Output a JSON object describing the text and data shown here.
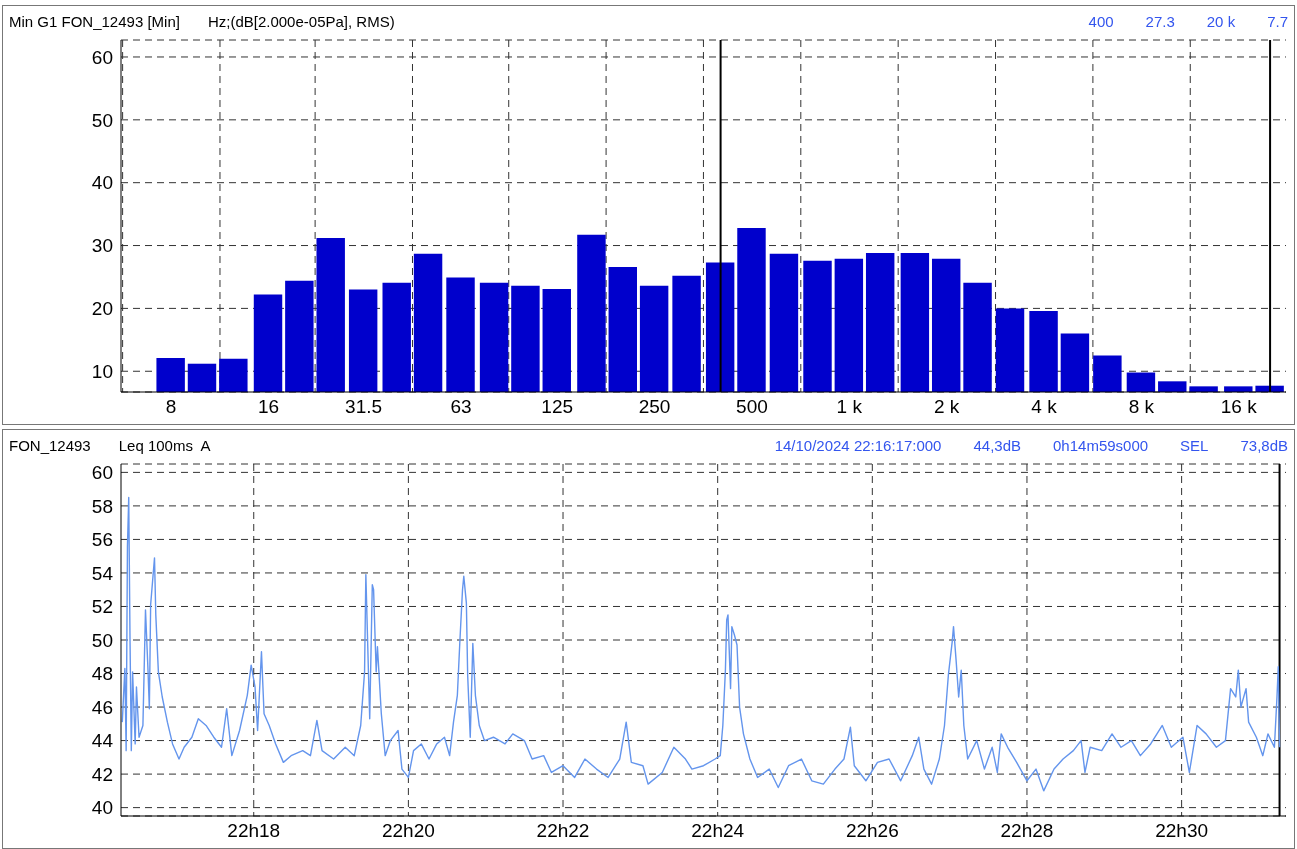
{
  "chart_data": [
    {
      "type": "bar",
      "title": "Min G1 FON_12493 [Min]",
      "subtitle": "Hz;(dB[2.000e-05Pa], RMS)",
      "annotations": [
        "400",
        "27.3",
        "20 k",
        "7.7"
      ],
      "x": [
        8,
        10,
        12.5,
        16,
        20,
        25,
        31.5,
        40,
        50,
        63,
        80,
        100,
        125,
        160,
        200,
        250,
        315,
        400,
        500,
        630,
        800,
        1000,
        1250,
        1600,
        2000,
        2500,
        3150,
        4000,
        5000,
        6300,
        8000,
        10000,
        12500,
        16000,
        20000
      ],
      "values": [
        12.1,
        11.2,
        12.0,
        22.2,
        24.4,
        31.2,
        23.0,
        24.1,
        28.7,
        24.9,
        24.1,
        23.6,
        23.1,
        31.7,
        26.6,
        23.6,
        25.2,
        27.3,
        32.8,
        28.7,
        27.6,
        27.9,
        28.8,
        28.8,
        27.9,
        24.1,
        20.0,
        19.6,
        16.0,
        12.5,
        9.8,
        8.4,
        7.6,
        7.6,
        7.7
      ],
      "color": "#0000cc",
      "log": "x",
      "xlim": [
        5.6,
        22400
      ],
      "xticks": [
        8,
        16,
        31.5,
        63,
        125,
        250,
        500,
        {
          "value": 1000,
          "label": "1 k"
        },
        {
          "value": 2000,
          "label": "2 k"
        },
        {
          "value": 4000,
          "label": "4 k"
        },
        {
          "value": 8000,
          "label": "8 k"
        },
        {
          "value": 16000,
          "label": "16 k"
        }
      ],
      "ylim": [
        6.7,
        62.7
      ],
      "yticks": [
        10,
        20,
        30,
        40,
        50,
        60
      ],
      "grid": true,
      "ref_lines": [
        {
          "axis": "x",
          "value": 400,
          "color": "#000000"
        },
        {
          "axis": "x",
          "value": 20000,
          "color": "#000000"
        }
      ]
    },
    {
      "type": "line",
      "title": "FON_12493",
      "subtitle": "Leq 100ms  A",
      "annotations": [
        "14/10/2024 22:16:17:000",
        "44,3dB",
        "0h14m59s000",
        "SEL",
        "73,8dB"
      ],
      "x": [
        "2024-10-14T22:16:18",
        "2024-10-14T22:16:20",
        "2024-10-14T22:16:21",
        "2024-10-14T22:16:22",
        "2024-10-14T22:16:23",
        "2024-10-14T22:16:24",
        "2024-10-14T22:16:25",
        "2024-10-14T22:16:26",
        "2024-10-14T22:16:28",
        "2024-10-14T22:16:29",
        "2024-10-14T22:16:31",
        "2024-10-14T22:16:34",
        "2024-10-14T22:16:36",
        "2024-10-14T22:16:38",
        "2024-10-14T22:16:39",
        "2024-10-14T22:16:40",
        "2024-10-14T22:16:43",
        "2024-10-14T22:16:44",
        "2024-10-14T22:16:46",
        "2024-10-14T22:16:49",
        "2024-10-14T22:16:53",
        "2024-10-14T22:16:57",
        "2024-10-14T22:17:02",
        "2024-10-14T22:17:06",
        "2024-10-14T22:17:12",
        "2024-10-14T22:17:17",
        "2024-10-14T22:17:23",
        "2024-10-14T22:17:29",
        "2024-10-14T22:17:35",
        "2024-10-14T22:17:39",
        "2024-10-14T22:17:43",
        "2024-10-14T22:17:49",
        "2024-10-14T22:17:55",
        "2024-10-14T22:17:58",
        "2024-10-14T22:18:01",
        "2024-10-14T22:18:03",
        "2024-10-14T22:18:06",
        "2024-10-14T22:18:08",
        "2024-10-14T22:18:12",
        "2024-10-14T22:18:17",
        "2024-10-14T22:18:23",
        "2024-10-14T22:18:29",
        "2024-10-14T22:18:38",
        "2024-10-14T22:18:44",
        "2024-10-14T22:18:49",
        "2024-10-14T22:18:53",
        "2024-10-14T22:19:02",
        "2024-10-14T22:19:11",
        "2024-10-14T22:19:18",
        "2024-10-14T22:19:23",
        "2024-10-14T22:19:26",
        "2024-10-14T22:19:27",
        "2024-10-14T22:19:29",
        "2024-10-14T22:19:30",
        "2024-10-14T22:19:32",
        "2024-10-14T22:19:33",
        "2024-10-14T22:19:35",
        "2024-10-14T22:19:36",
        "2024-10-14T22:19:39",
        "2024-10-14T22:19:42",
        "2024-10-14T22:19:46",
        "2024-10-14T22:19:52",
        "2024-10-14T22:19:55",
        "2024-10-14T22:20:00",
        "2024-10-14T22:20:04",
        "2024-10-14T22:20:10",
        "2024-10-14T22:20:16",
        "2024-10-14T22:20:22",
        "2024-10-14T22:20:28",
        "2024-10-14T22:20:32",
        "2024-10-14T22:20:35",
        "2024-10-14T22:20:38",
        "2024-10-14T22:20:40",
        "2024-10-14T22:20:42",
        "2024-10-14T22:20:43",
        "2024-10-14T22:20:45",
        "2024-10-14T22:20:46",
        "2024-10-14T22:20:48",
        "2024-10-14T22:20:50",
        "2024-10-14T22:20:52",
        "2024-10-14T22:20:55",
        "2024-10-14T22:20:59",
        "2024-10-14T22:21:06",
        "2024-10-14T22:21:15",
        "2024-10-14T22:21:21",
        "2024-10-14T22:21:30",
        "2024-10-14T22:21:36",
        "2024-10-14T22:21:45",
        "2024-10-14T22:21:51",
        "2024-10-14T22:22:00",
        "2024-10-14T22:22:09",
        "2024-10-14T22:22:17",
        "2024-10-14T22:22:26",
        "2024-10-14T22:22:35",
        "2024-10-14T22:22:44",
        "2024-10-14T22:22:49",
        "2024-10-14T22:22:53",
        "2024-10-14T22:23:02",
        "2024-10-14T22:23:06",
        "2024-10-14T22:23:17",
        "2024-10-14T22:23:26",
        "2024-10-14T22:23:35",
        "2024-10-14T22:23:40",
        "2024-10-14T22:23:49",
        "2024-10-14T22:23:58",
        "2024-10-14T22:24:02",
        "2024-10-14T22:24:04",
        "2024-10-14T22:24:06",
        "2024-10-14T22:24:07",
        "2024-10-14T22:24:08",
        "2024-10-14T22:24:10",
        "2024-10-14T22:24:11",
        "2024-10-14T22:24:13",
        "2024-10-14T22:24:15",
        "2024-10-14T22:24:17",
        "2024-10-14T22:24:20",
        "2024-10-14T22:24:25",
        "2024-10-14T22:24:31",
        "2024-10-14T22:24:40",
        "2024-10-14T22:24:47",
        "2024-10-14T22:24:55",
        "2024-10-14T22:25:05",
        "2024-10-14T22:25:13",
        "2024-10-14T22:25:22",
        "2024-10-14T22:25:31",
        "2024-10-14T22:25:38",
        "2024-10-14T22:25:43",
        "2024-10-14T22:25:46",
        "2024-10-14T22:25:55",
        "2024-10-14T22:26:04",
        "2024-10-14T22:26:13",
        "2024-10-14T22:26:22",
        "2024-10-14T22:26:31",
        "2024-10-14T22:26:36",
        "2024-10-14T22:26:40",
        "2024-10-14T22:26:46",
        "2024-10-14T22:26:52",
        "2024-10-14T22:26:56",
        "2024-10-14T22:26:59",
        "2024-10-14T22:27:02",
        "2024-10-14T22:27:03",
        "2024-10-14T22:27:05",
        "2024-10-14T22:27:07",
        "2024-10-14T22:27:09",
        "2024-10-14T22:27:11",
        "2024-10-14T22:27:14",
        "2024-10-14T22:27:21",
        "2024-10-14T22:27:27",
        "2024-10-14T22:27:33",
        "2024-10-14T22:27:37",
        "2024-10-14T22:27:40",
        "2024-10-14T22:27:45",
        "2024-10-14T22:27:52",
        "2024-10-14T22:28:00",
        "2024-10-14T22:28:07",
        "2024-10-14T22:28:13",
        "2024-10-14T22:28:21",
        "2024-10-14T22:28:28",
        "2024-10-14T22:28:36",
        "2024-10-14T22:28:42",
        "2024-10-14T22:28:45",
        "2024-10-14T22:28:49",
        "2024-10-14T22:28:58",
        "2024-10-14T22:29:06",
        "2024-10-14T22:29:13",
        "2024-10-14T22:29:21",
        "2024-10-14T22:29:28",
        "2024-10-14T22:29:36",
        "2024-10-14T22:29:45",
        "2024-10-14T22:29:52",
        "2024-10-14T22:30:01",
        "2024-10-14T22:30:06",
        "2024-10-14T22:30:12",
        "2024-10-14T22:30:19",
        "2024-10-14T22:30:27",
        "2024-10-14T22:30:34",
        "2024-10-14T22:30:38",
        "2024-10-14T22:30:42",
        "2024-10-14T22:30:44",
        "2024-10-14T22:30:46",
        "2024-10-14T22:30:50",
        "2024-10-14T22:30:52",
        "2024-10-14T22:30:58",
        "2024-10-14T22:31:03",
        "2024-10-14T22:31:07",
        "2024-10-14T22:31:12",
        "2024-10-14T22:31:14",
        "2024-10-14T22:31:15",
        "2024-10-14T22:31:16"
      ],
      "values": [
        45.1,
        48.3,
        43.4,
        55.6,
        58.5,
        50.0,
        43.4,
        48.1,
        43.8,
        47.2,
        44.2,
        44.9,
        51.8,
        48.1,
        45.9,
        52.1,
        54.9,
        51.5,
        48.1,
        46.6,
        45.1,
        43.8,
        42.9,
        43.6,
        44.2,
        45.3,
        44.9,
        44.2,
        43.6,
        45.9,
        43.1,
        44.6,
        46.7,
        48.5,
        47.2,
        44.6,
        49.3,
        45.6,
        44.9,
        43.8,
        42.7,
        43.1,
        43.4,
        43.1,
        45.2,
        43.4,
        42.9,
        43.6,
        43.1,
        44.9,
        48.1,
        53.9,
        48.1,
        45.3,
        53.3,
        53.0,
        48.1,
        49.6,
        45.6,
        43.1,
        44.0,
        44.6,
        42.3,
        41.8,
        43.4,
        43.8,
        42.9,
        43.8,
        44.2,
        43.1,
        45.1,
        46.7,
        50.0,
        53.0,
        53.8,
        52.2,
        47.9,
        44.2,
        49.8,
        46.7,
        44.9,
        44.0,
        44.2,
        43.8,
        44.4,
        44.0,
        42.9,
        43.1,
        42.1,
        42.5,
        41.8,
        42.9,
        42.3,
        41.8,
        42.9,
        45.1,
        42.7,
        42.5,
        41.4,
        42.1,
        43.6,
        42.9,
        42.3,
        42.5,
        42.9,
        43.1,
        44.9,
        48.2,
        51.2,
        51.5,
        47.1,
        50.8,
        50.3,
        49.7,
        46.0,
        44.4,
        42.9,
        41.8,
        42.3,
        41.2,
        42.5,
        42.9,
        41.6,
        41.4,
        42.3,
        42.9,
        44.8,
        42.5,
        41.6,
        42.7,
        42.9,
        41.6,
        43.1,
        44.2,
        42.3,
        41.4,
        42.9,
        44.9,
        47.9,
        49.9,
        50.8,
        48.8,
        46.6,
        48.2,
        44.9,
        42.9,
        44.0,
        42.3,
        43.6,
        42.1,
        44.4,
        43.6,
        42.7,
        41.6,
        42.3,
        41.0,
        42.3,
        42.9,
        43.4,
        44.0,
        42.1,
        43.6,
        43.4,
        44.4,
        43.6,
        44.0,
        43.1,
        43.8,
        44.9,
        43.6,
        44.2,
        42.1,
        44.9,
        44.4,
        43.6,
        44.0,
        47.1,
        46.6,
        48.2,
        46.0,
        47.1,
        45.1,
        44.2,
        43.1,
        44.4,
        43.6,
        46.6,
        48.4,
        43.6
      ],
      "color": "#6495ed",
      "xlim": [
        "2024-10-14T22:16:17",
        "2024-10-14T22:31:21"
      ],
      "xticks": [
        {
          "value": "2024-10-14T22:18",
          "label": "22h18"
        },
        {
          "value": "2024-10-14T22:20",
          "label": "22h20"
        },
        {
          "value": "2024-10-14T22:22",
          "label": "22h22"
        },
        {
          "value": "2024-10-14T22:24",
          "label": "22h24"
        },
        {
          "value": "2024-10-14T22:26",
          "label": "22h26"
        },
        {
          "value": "2024-10-14T22:28",
          "label": "22h28"
        },
        {
          "value": "2024-10-14T22:30",
          "label": "22h30"
        }
      ],
      "ylim": [
        39.5,
        60.5
      ],
      "yticks": [
        40,
        42,
        44,
        46,
        48,
        50,
        52,
        54,
        56,
        58,
        60
      ],
      "grid": true,
      "ref_lines": [
        {
          "axis": "x",
          "value": "2024-10-14T22:31:16",
          "color": "#000000"
        }
      ]
    }
  ]
}
